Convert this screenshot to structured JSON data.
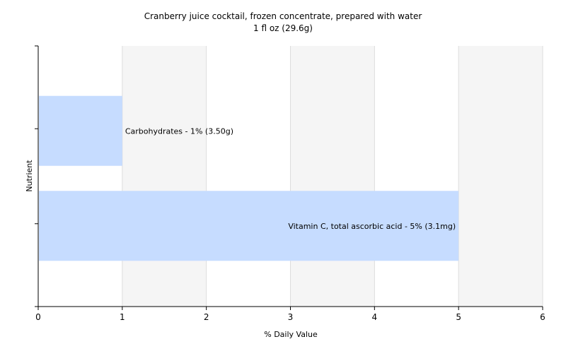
{
  "chart_data": {
    "type": "bar",
    "orientation": "horizontal",
    "title": "Cranberry juice cocktail, frozen concentrate, prepared with water",
    "subtitle": "1 fl oz (29.6g)",
    "xlabel": "% Daily Value",
    "ylabel": "Nutrient",
    "xlim": [
      0,
      6
    ],
    "xticks": [
      "0",
      "1",
      "2",
      "3",
      "4",
      "5",
      "6"
    ],
    "grid": true,
    "categories": [
      "Carbohydrates",
      "Vitamin C, total ascorbic acid"
    ],
    "values": [
      1,
      5
    ],
    "labels": [
      "Carbohydrates - 1% (3.50g)",
      "Vitamin C, total ascorbic acid - 5% (3.1mg)"
    ],
    "colors": {
      "bar": "#c6dcff",
      "plot_background_stripe": "#f5f5f5",
      "gridline": "#dddddd",
      "axis": "#000000"
    }
  }
}
